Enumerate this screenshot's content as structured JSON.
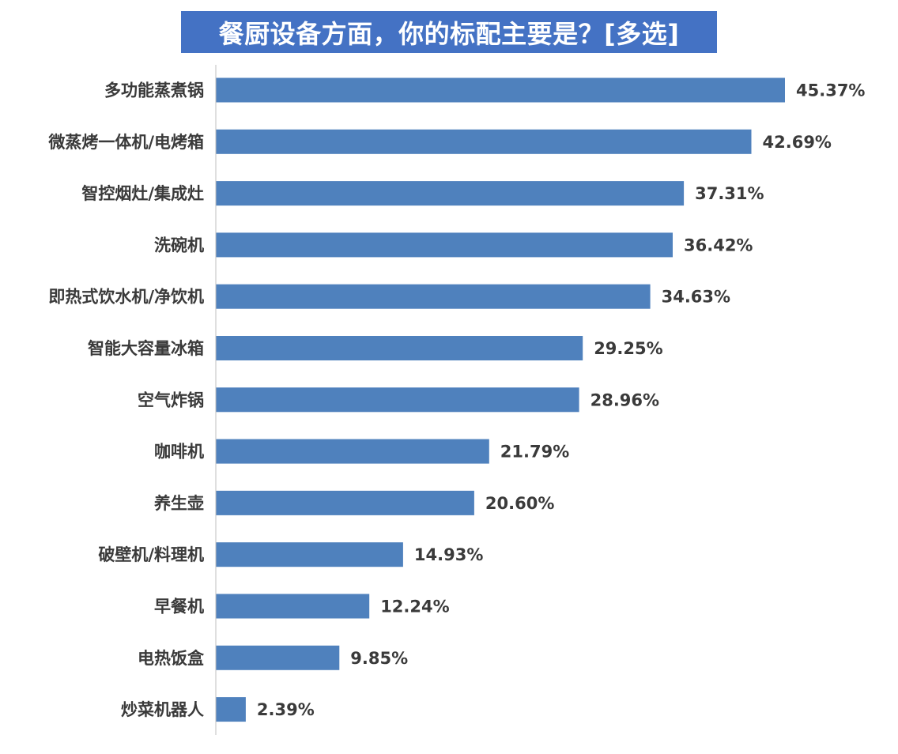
{
  "chart_data": {
    "type": "bar",
    "orientation": "horizontal",
    "title": "餐厨设备方面，你的标配主要是？[多选]",
    "categories": [
      "多功能蒸煮锅",
      "微蒸烤一体机/电烤箱",
      "智控烟灶/集成灶",
      "洗碗机",
      "即热式饮水机/净饮机",
      "智能大容量冰箱",
      "空气炸锅",
      "咖啡机",
      "养生壶",
      "破壁机/料理机",
      "早餐机",
      "电热饭盒",
      "炒菜机器人"
    ],
    "values": [
      45.37,
      42.69,
      37.31,
      36.42,
      34.63,
      29.25,
      28.96,
      21.79,
      20.6,
      14.93,
      12.24,
      9.85,
      2.39
    ],
    "value_labels": [
      "45.37%",
      "42.69%",
      "37.31%",
      "36.42%",
      "34.63%",
      "29.25%",
      "28.96%",
      "21.79%",
      "20.60%",
      "14.93%",
      "12.24%",
      "9.85%",
      "2.39%"
    ],
    "unit": "%",
    "grid": false,
    "legend": "none",
    "colors": {
      "bar": "#4f81bd",
      "title_bg": "#4472c4",
      "title_text": "#ffffff",
      "axis": "#bfbfbf",
      "text": "#3a3a3a"
    }
  }
}
